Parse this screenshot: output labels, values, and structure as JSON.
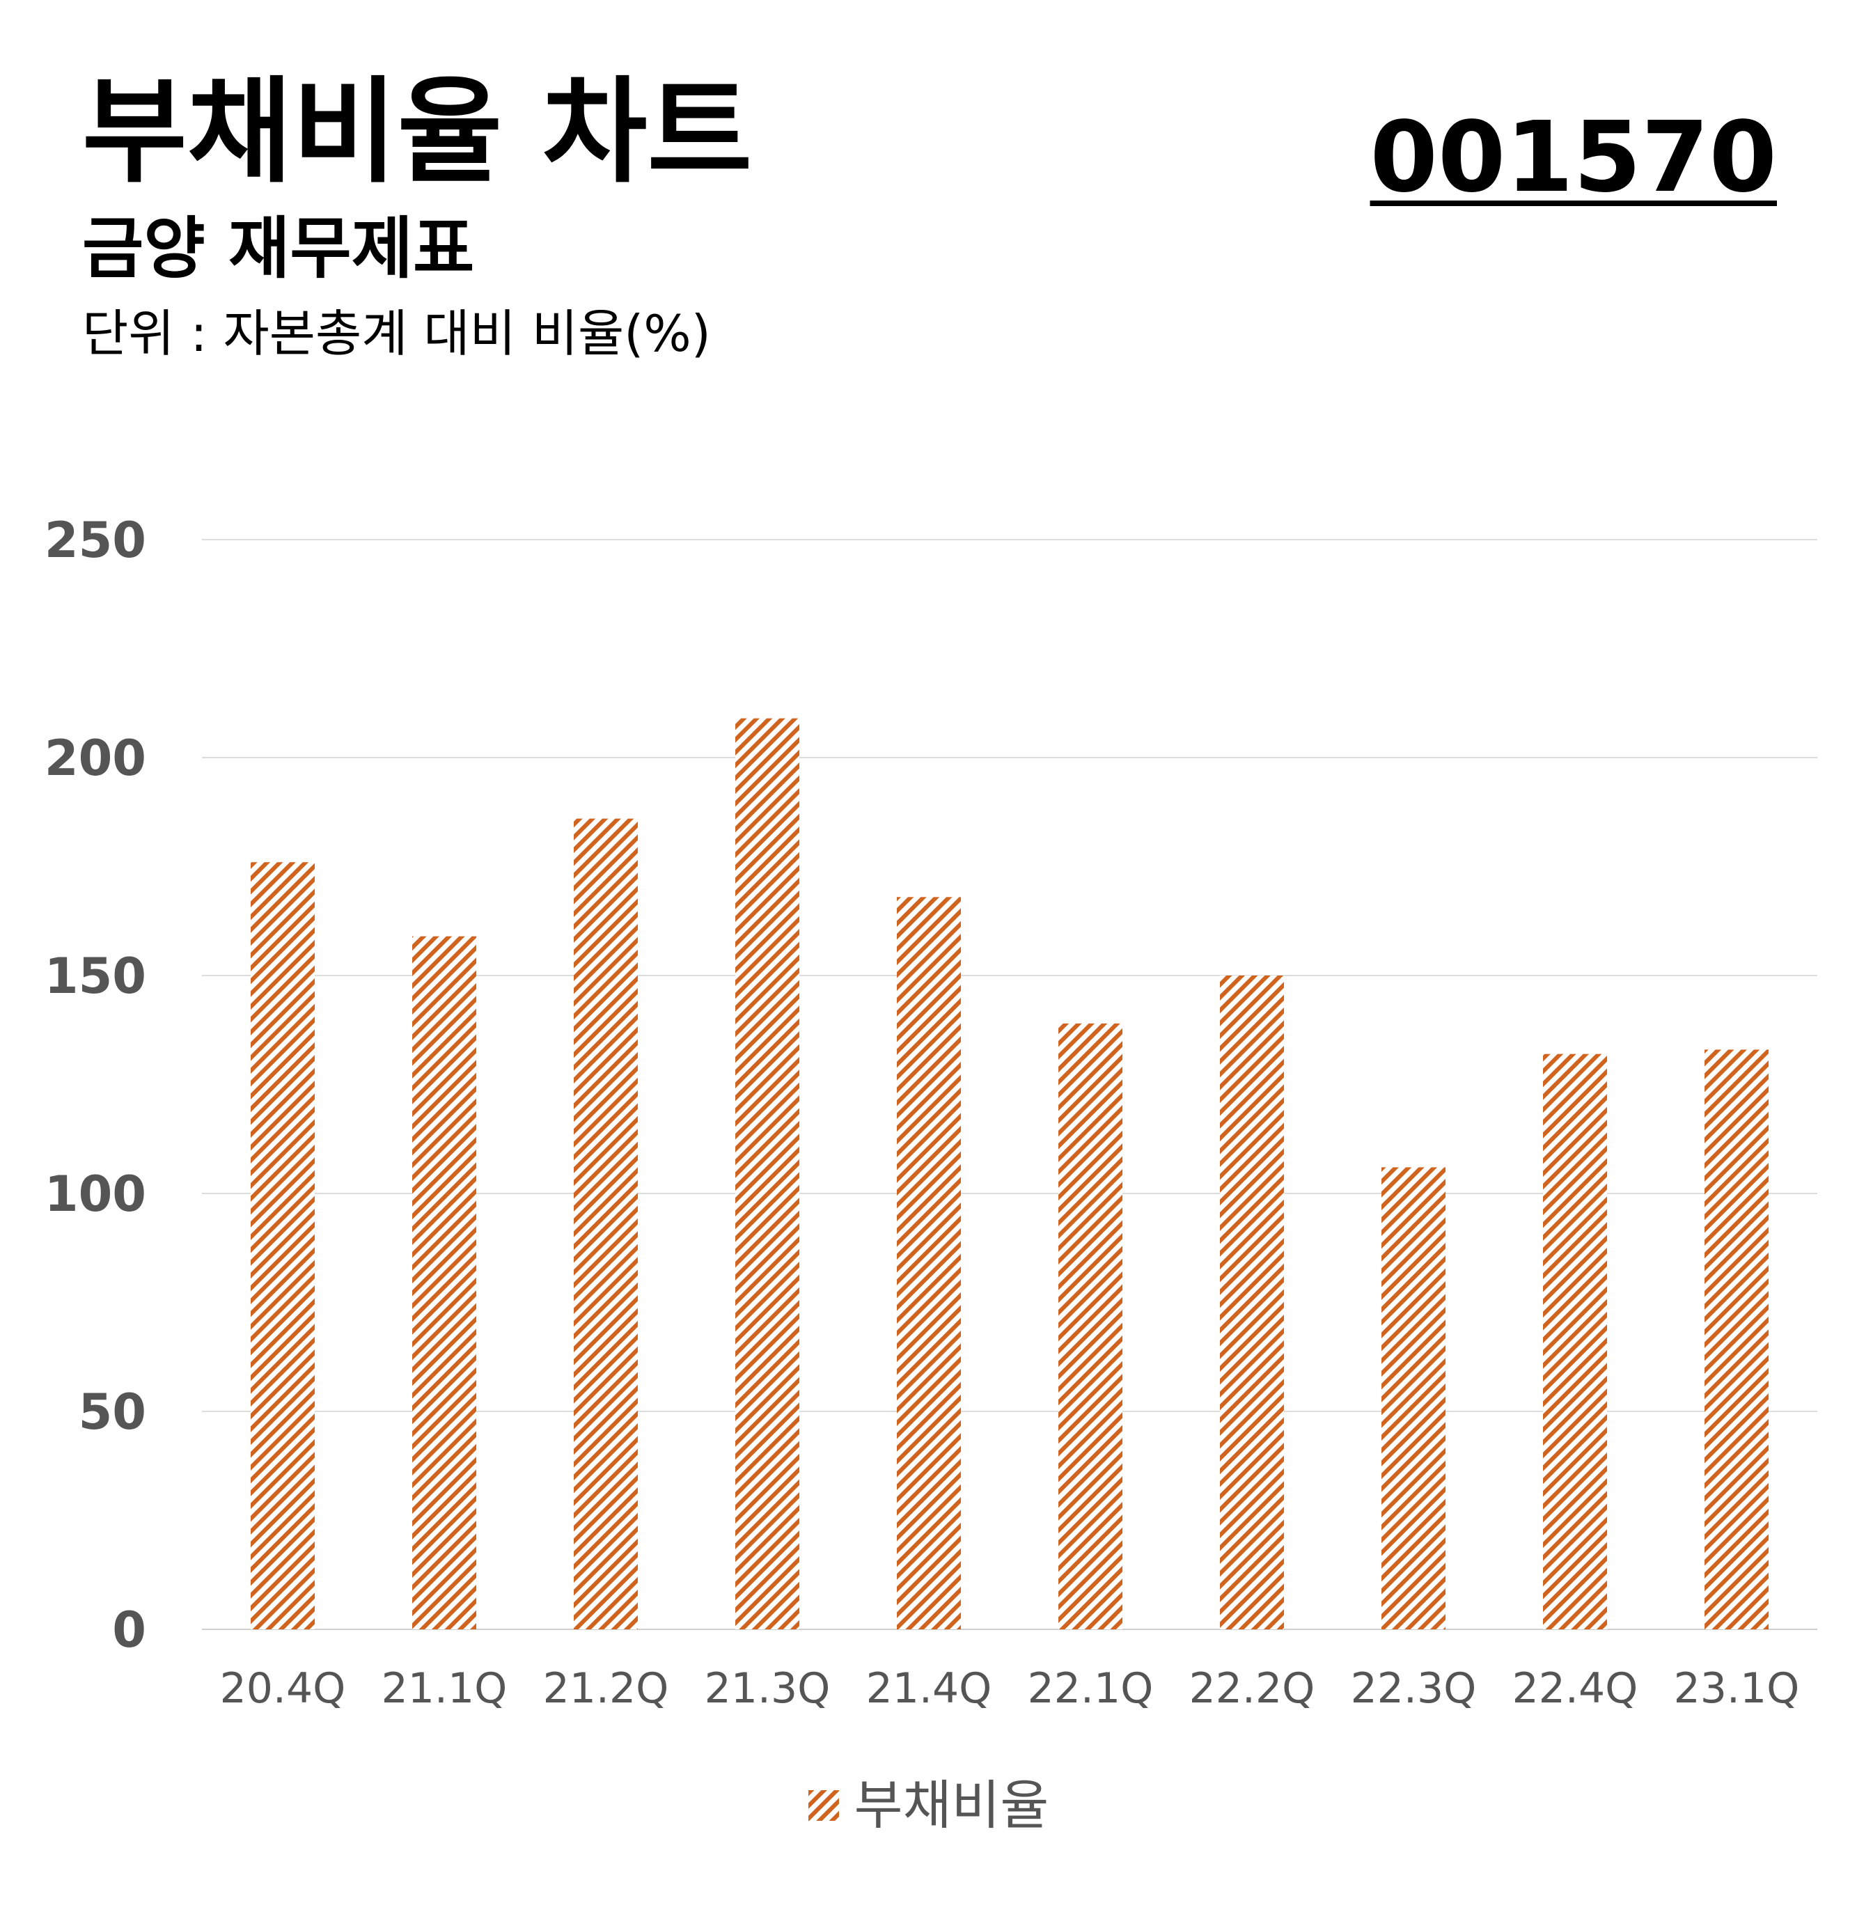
{
  "header": {
    "title": "부채비율 차트",
    "subtitle": "금양 재무제표",
    "unit": "단위 : 자본총계 대비 비율(%)",
    "code": "001570"
  },
  "colors": {
    "bar": "#d0641f",
    "grid": "#dddddd",
    "tick": "#555555"
  },
  "chart_data": {
    "type": "bar",
    "title": "부채비율 차트",
    "categories": [
      "20.4Q",
      "21.1Q",
      "21.2Q",
      "21.3Q",
      "21.4Q",
      "22.1Q",
      "22.2Q",
      "22.3Q",
      "22.4Q",
      "23.1Q"
    ],
    "series": [
      {
        "name": "부채비율",
        "values": [
          176,
          159,
          186,
          209,
          168,
          139,
          150,
          106,
          132,
          133
        ]
      }
    ],
    "ylim": [
      0,
      250
    ],
    "yticks": [
      0,
      50,
      100,
      150,
      200,
      250
    ],
    "grid": true,
    "legend": "bottom-center",
    "fill_pattern": "diagonal-hatch"
  }
}
